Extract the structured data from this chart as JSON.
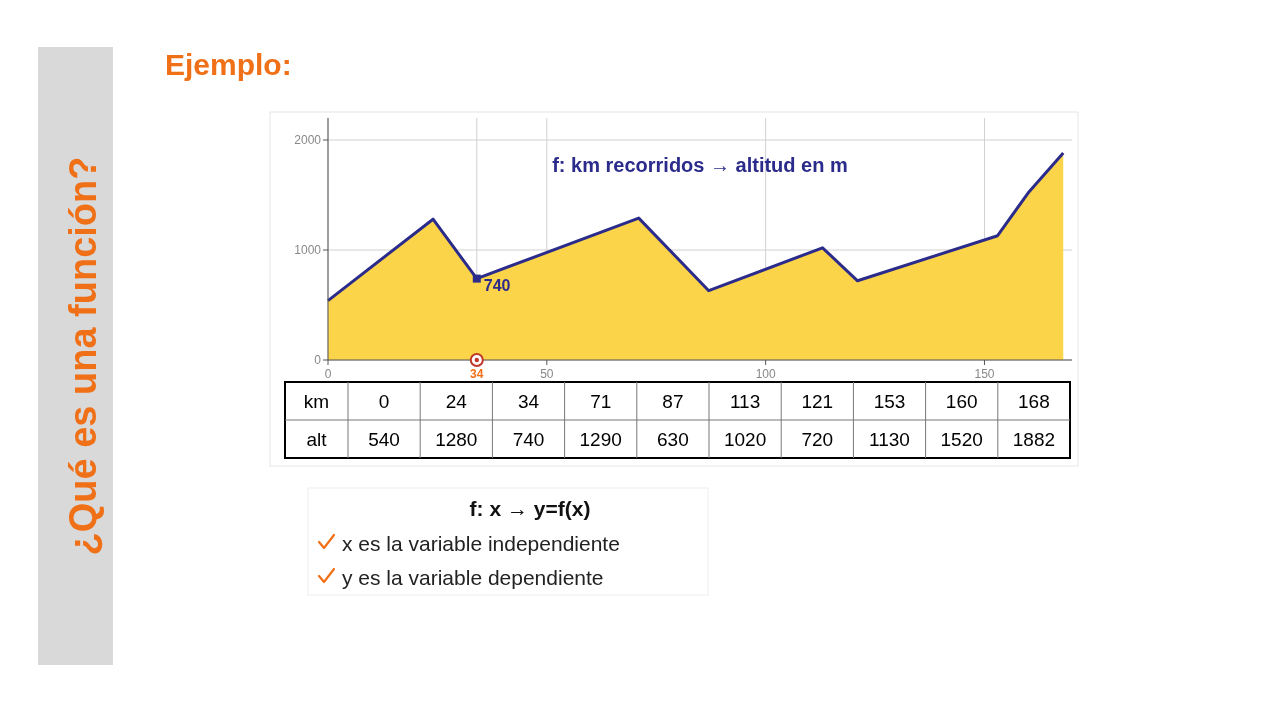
{
  "chart_data": [
    {
      "type": "area",
      "title": "f: km recorridos → altitud en m",
      "x": [
        0,
        24,
        34,
        71,
        87,
        113,
        121,
        153,
        160,
        168
      ],
      "series": [
        {
          "color": "#fcd449",
          "values": [
            540,
            1280,
            740,
            1290,
            630,
            1020,
            720,
            1130,
            1520,
            1882
          ]
        },
        {
          "type": "line",
          "color": "#2b2b8c",
          "values": [
            540,
            1280,
            740,
            1290,
            630,
            1020,
            720,
            1130,
            1520,
            1882
          ]
        }
      ],
      "xlim": [
        0,
        170
      ],
      "ylim": [
        0,
        2200
      ],
      "xticks": [
        0,
        34,
        50,
        100,
        150
      ],
      "yticks": [
        0,
        1000,
        2000
      ],
      "grid": true,
      "annotations": [
        "Ejemplo:",
        "¿Qué es una función?",
        "f: x → y=f(x)",
        "x es la variable independiente",
        "y es la variable dependiente",
        {
          "text": "740",
          "x": 34,
          "y": 740
        }
      ]
    },
    {
      "type": "other",
      "xlabel": "km",
      "ylabel": "alt",
      "categories": [
        "0",
        "24",
        "34",
        "71",
        "87",
        "113",
        "121",
        "153",
        "160",
        "168"
      ],
      "values": [
        540,
        1280,
        740,
        1290,
        630,
        1020,
        720,
        1130,
        1520,
        1882
      ],
      "data_labels": true
    }
  ]
}
